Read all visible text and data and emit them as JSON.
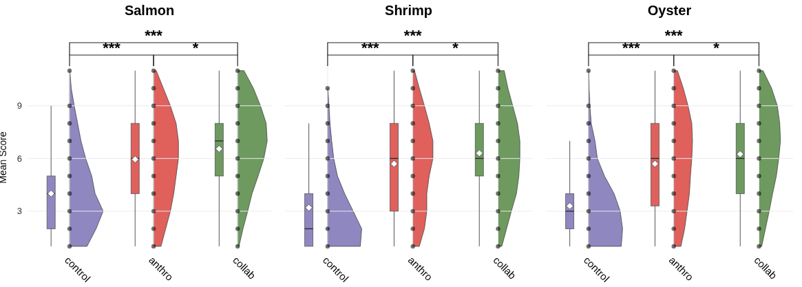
{
  "chart_data": [
    {
      "type": "box",
      "title": "Salmon",
      "ylabel": "Mean Score",
      "categories": [
        "control",
        "anthro",
        "collab"
      ],
      "colors": [
        "#8f87c0",
        "#e0605c",
        "#6e9a5f"
      ],
      "ylim": [
        0.8,
        11.3
      ],
      "yticks": [
        3,
        6,
        9
      ],
      "grid": true,
      "annotations": [
        "***",
        "***",
        "*"
      ],
      "boxes": [
        {
          "low": 1,
          "q1": 2,
          "median": 4,
          "q3": 5,
          "high": 9,
          "mean": 4.0
        },
        {
          "low": 1,
          "q1": 4,
          "median": 6,
          "q3": 8,
          "high": 11,
          "mean": 5.95
        },
        {
          "low": 1,
          "q1": 5,
          "median": 7,
          "q3": 8,
          "high": 11,
          "mean": 6.55
        }
      ],
      "series": [
        {
          "type": "scatter",
          "color": "#000000",
          "x": [
            "control",
            "control",
            "control",
            "control",
            "control",
            "control",
            "control",
            "control",
            "control",
            "control",
            "anthro",
            "anthro",
            "anthro",
            "anthro",
            "anthro",
            "anthro",
            "anthro",
            "anthro",
            "anthro",
            "anthro",
            "anthro",
            "collab",
            "collab",
            "collab",
            "collab",
            "collab",
            "collab",
            "collab",
            "collab",
            "collab",
            "collab",
            "collab"
          ],
          "values": [
            1,
            2,
            3,
            4,
            5,
            6,
            7,
            8,
            9,
            11,
            1,
            2,
            3,
            4,
            5,
            6,
            7,
            8,
            9,
            10,
            11,
            1,
            2,
            3,
            4,
            5,
            6,
            7,
            8,
            9,
            10,
            11
          ]
        }
      ]
    },
    {
      "type": "box",
      "title": "Shrimp",
      "categories": [
        "control",
        "anthro",
        "collab"
      ],
      "colors": [
        "#8f87c0",
        "#e0605c",
        "#6e9a5f"
      ],
      "ylim": [
        0.8,
        11.3
      ],
      "yticks": [
        3,
        6,
        9
      ],
      "grid": true,
      "tick_labels": "x",
      "annotations": [
        "***",
        "***",
        "*"
      ],
      "boxes": [
        {
          "low": 1,
          "q1": 1,
          "median": 2,
          "q3": 4,
          "high": 8,
          "mean": 3.2
        },
        {
          "low": 1,
          "q1": 3,
          "median": 6,
          "q3": 8,
          "high": 11,
          "mean": 5.7
        },
        {
          "low": 1,
          "q1": 5,
          "median": 6,
          "q3": 8,
          "high": 11,
          "mean": 6.3
        }
      ],
      "series": [
        {
          "type": "scatter",
          "color": "#000000",
          "x": [
            "control",
            "control",
            "control",
            "control",
            "control",
            "control",
            "control",
            "control",
            "control",
            "control",
            "anthro",
            "anthro",
            "anthro",
            "anthro",
            "anthro",
            "anthro",
            "anthro",
            "anthro",
            "anthro",
            "anthro",
            "anthro",
            "collab",
            "collab",
            "collab",
            "collab",
            "collab",
            "collab",
            "collab",
            "collab",
            "collab",
            "collab",
            "collab"
          ],
          "values": [
            1,
            2,
            3,
            4,
            5,
            6,
            7,
            8,
            9,
            10,
            1,
            2,
            3,
            4,
            5,
            6,
            7,
            8,
            9,
            10,
            11,
            1,
            2,
            3,
            4,
            5,
            6,
            7,
            8,
            9,
            10,
            11
          ]
        }
      ]
    },
    {
      "type": "box",
      "title": "Oyster",
      "categories": [
        "control",
        "anthro",
        "collab"
      ],
      "colors": [
        "#8f87c0",
        "#e0605c",
        "#6e9a5f"
      ],
      "ylim": [
        0.8,
        11.3
      ],
      "yticks": [
        3,
        6,
        9
      ],
      "grid": true,
      "tick_labels": "x",
      "annotations": [
        "***",
        "***",
        "*"
      ],
      "boxes": [
        {
          "low": 1,
          "q1": 2,
          "median": 3,
          "q3": 4,
          "high": 7,
          "mean": 3.3
        },
        {
          "low": 1,
          "q1": 3.3,
          "median": 6,
          "q3": 8,
          "high": 11,
          "mean": 5.7
        },
        {
          "low": 1,
          "q1": 4,
          "median": 6,
          "q3": 8,
          "high": 11,
          "mean": 6.25
        }
      ],
      "series": [
        {
          "type": "scatter",
          "color": "#000000",
          "x": [
            "control",
            "control",
            "control",
            "control",
            "control",
            "control",
            "control",
            "control",
            "control",
            "control",
            "anthro",
            "anthro",
            "anthro",
            "anthro",
            "anthro",
            "anthro",
            "anthro",
            "anthro",
            "anthro",
            "anthro",
            "anthro",
            "collab",
            "collab",
            "collab",
            "collab",
            "collab",
            "collab",
            "collab",
            "collab",
            "collab",
            "collab",
            "collab"
          ],
          "values": [
            1,
            2,
            3,
            4,
            5,
            6,
            7,
            8,
            9,
            11,
            1,
            2,
            3,
            4,
            5,
            6,
            7,
            8,
            9,
            10,
            11,
            1,
            2,
            3,
            4,
            5,
            6,
            7,
            8,
            9,
            10,
            11
          ]
        }
      ]
    }
  ]
}
